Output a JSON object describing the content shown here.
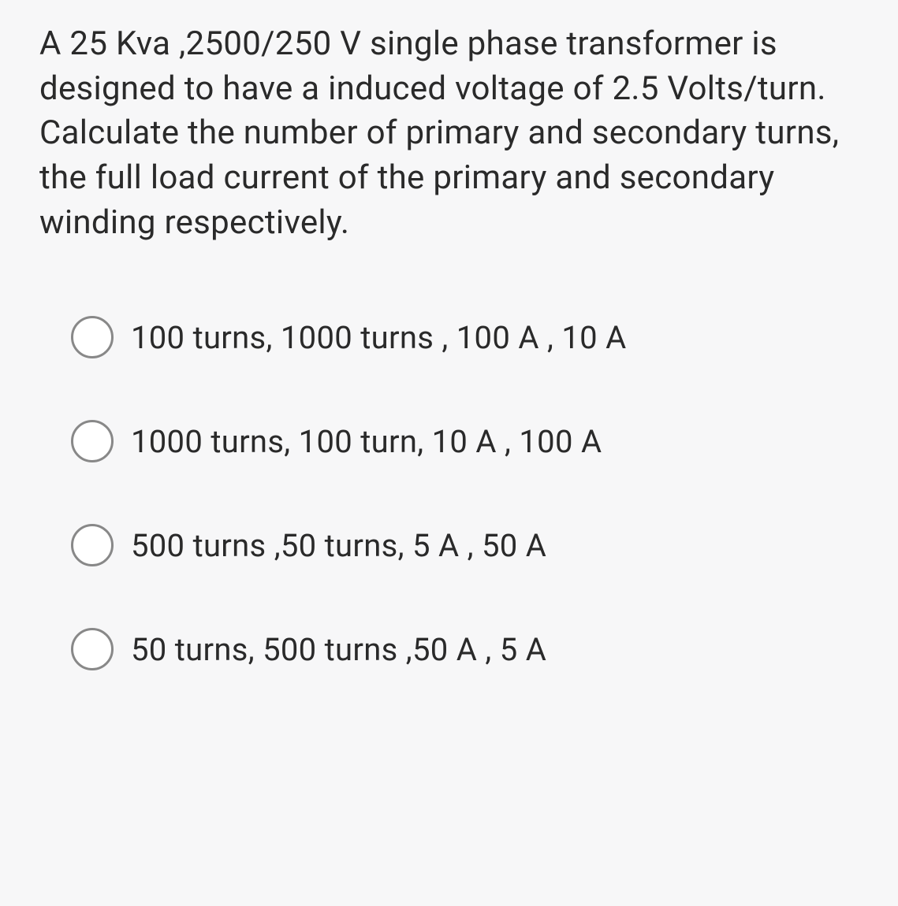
{
  "question": {
    "text": "A 25 Kva ,2500/250 V single phase transformer is designed to have a  induced voltage of 2.5 Volts/turn. Calculate  the number of primary and secondary turns, the full load current of the primary and secondary winding respectively."
  },
  "options": [
    {
      "label": "100 turns, 1000 turns , 100 A , 10 A"
    },
    {
      "label": "1000 turns, 100 turn, 10 A , 100 A"
    },
    {
      "label": "500 turns ,50 turns, 5 A , 50 A"
    },
    {
      "label": "50 turns, 500 turns ,50 A , 5 A"
    }
  ],
  "styling": {
    "background_color": "#f7f7f8",
    "text_color": "#2a2a2a",
    "radio_border_color": "#888888",
    "radio_background_color": "#ffffff",
    "question_fontsize": 42,
    "option_fontsize": 40,
    "radio_size": 54,
    "radio_border_width": 3
  }
}
